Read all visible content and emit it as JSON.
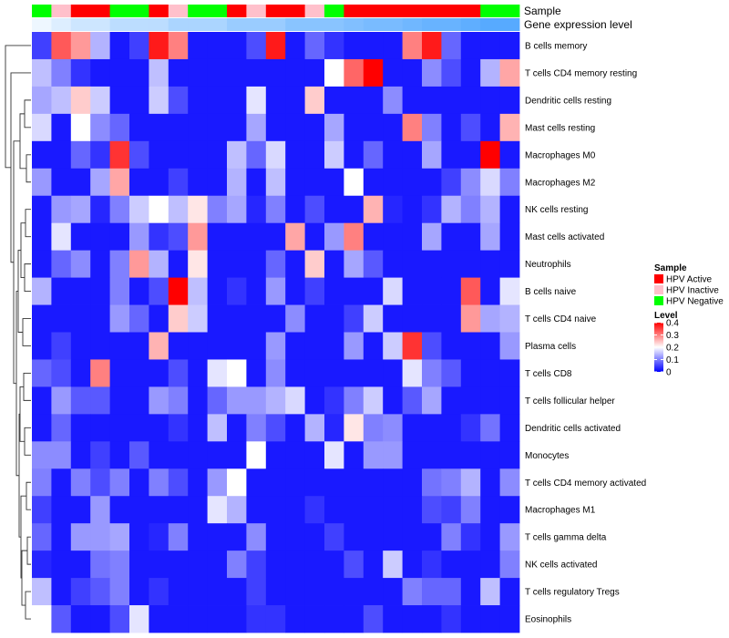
{
  "chart_data": {
    "type": "heatmap",
    "annotation_labels": {
      "sample": "Sample",
      "gene_level": "Gene expression level"
    },
    "columns": 25,
    "sample_groups": [
      "neg",
      "ina",
      "act",
      "act",
      "neg",
      "neg",
      "act",
      "ina",
      "neg",
      "neg",
      "act",
      "ina",
      "act",
      "act",
      "ina",
      "neg",
      "act",
      "act",
      "act",
      "act",
      "act",
      "act",
      "act",
      "neg",
      "neg"
    ],
    "gene_expression_level": [
      0.1,
      0.2,
      0.3,
      0.3,
      0.4,
      0.4,
      0.4,
      0.5,
      0.5,
      0.5,
      0.6,
      0.6,
      0.6,
      0.7,
      0.7,
      0.7,
      0.75,
      0.8,
      0.8,
      0.85,
      0.9,
      0.9,
      0.95,
      1.0,
      1.0
    ],
    "rows": [
      {
        "label": "B cells memory",
        "values": [
          0.05,
          0.33,
          0.28,
          0.14,
          0.02,
          0.05,
          0.38,
          0.3,
          0.02,
          0.02,
          0.02,
          0.06,
          0.38,
          0.02,
          0.08,
          0.04,
          0.02,
          0.02,
          0.02,
          0.3,
          0.38,
          0.08,
          0.02,
          0.02,
          0.02
        ]
      },
      {
        "label": "T cells CD4 memory resting",
        "values": [
          0.15,
          0.1,
          0.04,
          0.02,
          0.02,
          0.02,
          0.15,
          0.02,
          0.02,
          0.02,
          0.02,
          0.02,
          0.02,
          0.02,
          0.02,
          0.2,
          0.32,
          0.4,
          0.02,
          0.02,
          0.11,
          0.06,
          0.02,
          0.14,
          0.27
        ]
      },
      {
        "label": "Dendritic cells resting",
        "values": [
          0.13,
          0.15,
          0.24,
          0.16,
          0.02,
          0.02,
          0.16,
          0.06,
          0.02,
          0.02,
          0.02,
          0.18,
          0.02,
          0.02,
          0.24,
          0.02,
          0.02,
          0.02,
          0.11,
          0.02,
          0.02,
          0.02,
          0.02,
          0.02,
          0.02
        ]
      },
      {
        "label": "Mast cells resting",
        "values": [
          0.17,
          0.02,
          0.2,
          0.11,
          0.08,
          0.02,
          0.02,
          0.02,
          0.02,
          0.02,
          0.02,
          0.13,
          0.02,
          0.02,
          0.02,
          0.13,
          0.02,
          0.02,
          0.02,
          0.3,
          0.1,
          0.02,
          0.06,
          0.02,
          0.26
        ]
      },
      {
        "label": "Macrophages M0",
        "values": [
          0.02,
          0.02,
          0.08,
          0.04,
          0.36,
          0.06,
          0.02,
          0.02,
          0.02,
          0.02,
          0.15,
          0.08,
          0.17,
          0.02,
          0.02,
          0.16,
          0.02,
          0.08,
          0.02,
          0.02,
          0.13,
          0.02,
          0.02,
          0.4,
          0.02
        ]
      },
      {
        "label": "Macrophages M2",
        "values": [
          0.12,
          0.02,
          0.02,
          0.13,
          0.27,
          0.02,
          0.02,
          0.05,
          0.02,
          0.02,
          0.14,
          0.02,
          0.15,
          0.02,
          0.02,
          0.02,
          0.2,
          0.02,
          0.02,
          0.02,
          0.02,
          0.05,
          0.11,
          0.17,
          0.1
        ]
      },
      {
        "label": "NK cells resting",
        "values": [
          0.02,
          0.12,
          0.13,
          0.03,
          0.1,
          0.16,
          0.2,
          0.15,
          0.22,
          0.1,
          0.13,
          0.03,
          0.1,
          0.02,
          0.06,
          0.02,
          0.02,
          0.26,
          0.03,
          0.02,
          0.04,
          0.14,
          0.1,
          0.14,
          0.02
        ]
      },
      {
        "label": "Mast cells activated",
        "values": [
          0.02,
          0.18,
          0.02,
          0.02,
          0.02,
          0.12,
          0.04,
          0.06,
          0.28,
          0.02,
          0.02,
          0.02,
          0.02,
          0.27,
          0.02,
          0.12,
          0.3,
          0.02,
          0.02,
          0.02,
          0.13,
          0.02,
          0.02,
          0.13,
          0.02
        ]
      },
      {
        "label": "Neutrophils",
        "values": [
          0.02,
          0.08,
          0.11,
          0.02,
          0.1,
          0.28,
          0.14,
          0.02,
          0.22,
          0.02,
          0.02,
          0.02,
          0.08,
          0.02,
          0.24,
          0.02,
          0.13,
          0.07,
          0.02,
          0.02,
          0.02,
          0.02,
          0.02,
          0.02,
          0.02
        ]
      },
      {
        "label": "B cells naive",
        "values": [
          0.14,
          0.02,
          0.02,
          0.02,
          0.1,
          0.02,
          0.06,
          0.4,
          0.15,
          0.02,
          0.04,
          0.02,
          0.12,
          0.02,
          0.05,
          0.02,
          0.02,
          0.02,
          0.17,
          0.02,
          0.02,
          0.02,
          0.33,
          0.02,
          0.18
        ]
      },
      {
        "label": "T cells CD4 naive",
        "values": [
          0.02,
          0.02,
          0.02,
          0.02,
          0.12,
          0.08,
          0.02,
          0.24,
          0.16,
          0.02,
          0.02,
          0.02,
          0.02,
          0.11,
          0.02,
          0.02,
          0.05,
          0.16,
          0.02,
          0.02,
          0.02,
          0.02,
          0.28,
          0.13,
          0.14
        ]
      },
      {
        "label": "Plasma cells",
        "values": [
          0.02,
          0.05,
          0.02,
          0.02,
          0.02,
          0.02,
          0.26,
          0.02,
          0.02,
          0.02,
          0.02,
          0.02,
          0.12,
          0.02,
          0.02,
          0.02,
          0.12,
          0.02,
          0.16,
          0.36,
          0.06,
          0.02,
          0.02,
          0.02,
          0.12
        ]
      },
      {
        "label": "T cells CD8",
        "values": [
          0.08,
          0.06,
          0.02,
          0.3,
          0.02,
          0.02,
          0.02,
          0.06,
          0.02,
          0.18,
          0.2,
          0.02,
          0.11,
          0.02,
          0.02,
          0.02,
          0.02,
          0.02,
          0.02,
          0.18,
          0.1,
          0.07,
          0.02,
          0.02,
          0.02
        ]
      },
      {
        "label": "T cells follicular helper",
        "values": [
          0.02,
          0.12,
          0.07,
          0.07,
          0.02,
          0.02,
          0.12,
          0.1,
          0.02,
          0.08,
          0.12,
          0.12,
          0.14,
          0.17,
          0.02,
          0.04,
          0.1,
          0.16,
          0.02,
          0.07,
          0.13,
          0.02,
          0.02,
          0.02,
          0.02
        ]
      },
      {
        "label": "Dendritic cells activated",
        "values": [
          0.02,
          0.08,
          0.02,
          0.02,
          0.02,
          0.02,
          0.02,
          0.04,
          0.02,
          0.15,
          0.02,
          0.1,
          0.06,
          0.02,
          0.14,
          0.03,
          0.22,
          0.1,
          0.11,
          0.02,
          0.02,
          0.02,
          0.04,
          0.09,
          0.02
        ]
      },
      {
        "label": "Monocytes",
        "values": [
          0.11,
          0.11,
          0.02,
          0.05,
          0.02,
          0.07,
          0.02,
          0.02,
          0.02,
          0.02,
          0.02,
          0.2,
          0.02,
          0.02,
          0.02,
          0.18,
          0.02,
          0.12,
          0.12,
          0.02,
          0.02,
          0.02,
          0.02,
          0.02,
          0.02
        ]
      },
      {
        "label": "T cells CD4 memory activated",
        "values": [
          0.1,
          0.02,
          0.1,
          0.06,
          0.1,
          0.02,
          0.1,
          0.06,
          0.02,
          0.12,
          0.2,
          0.02,
          0.02,
          0.02,
          0.02,
          0.02,
          0.02,
          0.02,
          0.02,
          0.02,
          0.09,
          0.1,
          0.14,
          0.02,
          0.11
        ]
      },
      {
        "label": "Macrophages M1",
        "values": [
          0.05,
          0.02,
          0.02,
          0.12,
          0.02,
          0.02,
          0.02,
          0.02,
          0.02,
          0.18,
          0.14,
          0.02,
          0.02,
          0.02,
          0.04,
          0.02,
          0.02,
          0.02,
          0.02,
          0.02,
          0.06,
          0.05,
          0.1,
          0.02,
          0.02
        ]
      },
      {
        "label": "T cells gamma delta",
        "values": [
          0.08,
          0.02,
          0.12,
          0.12,
          0.13,
          0.02,
          0.03,
          0.1,
          0.02,
          0.02,
          0.02,
          0.11,
          0.02,
          0.02,
          0.02,
          0.05,
          0.02,
          0.02,
          0.02,
          0.02,
          0.02,
          0.1,
          0.04,
          0.02,
          0.12
        ]
      },
      {
        "label": "NK cells activated",
        "values": [
          0.03,
          0.02,
          0.02,
          0.09,
          0.1,
          0.02,
          0.02,
          0.02,
          0.02,
          0.02,
          0.1,
          0.05,
          0.02,
          0.02,
          0.02,
          0.02,
          0.06,
          0.02,
          0.16,
          0.02,
          0.04,
          0.02,
          0.02,
          0.02,
          0.1
        ]
      },
      {
        "label": "T cells regulatory  Tregs",
        "values": [
          0.15,
          0.02,
          0.05,
          0.07,
          0.1,
          0.02,
          0.04,
          0.02,
          0.02,
          0.02,
          0.02,
          0.05,
          0.02,
          0.02,
          0.02,
          0.02,
          0.02,
          0.02,
          0.02,
          0.1,
          0.08,
          0.08,
          0.02,
          0.15,
          0.02
        ]
      },
      {
        "label": "Eosinophils",
        "values": [
          0.2,
          0.07,
          0.02,
          0.02,
          0.06,
          0.18,
          0.02,
          0.02,
          0.02,
          0.02,
          0.02,
          0.04,
          0.04,
          0.02,
          0.02,
          0.02,
          0.02,
          0.06,
          0.02,
          0.02,
          0.02,
          0.04,
          0.02,
          0.02,
          0.02
        ]
      }
    ],
    "legend_sample": {
      "title": "Sample",
      "items": [
        {
          "key": "act",
          "label": "HPV Active",
          "color": "#ff0000"
        },
        {
          "key": "ina",
          "label": "HPV Inactive",
          "color": "#ffc0cb"
        },
        {
          "key": "neg",
          "label": "HPV Negative",
          "color": "#00ff00"
        }
      ]
    },
    "legend_level": {
      "title": "Level",
      "ticks": [
        0.4,
        0.3,
        0.2,
        0.1,
        0
      ],
      "range": [
        0,
        0.4
      ],
      "colors": [
        "#0000ff",
        "#ffffff",
        "#ff0000"
      ]
    },
    "gene_level_colors": [
      "#ffffff",
      "#57aaff"
    ]
  }
}
